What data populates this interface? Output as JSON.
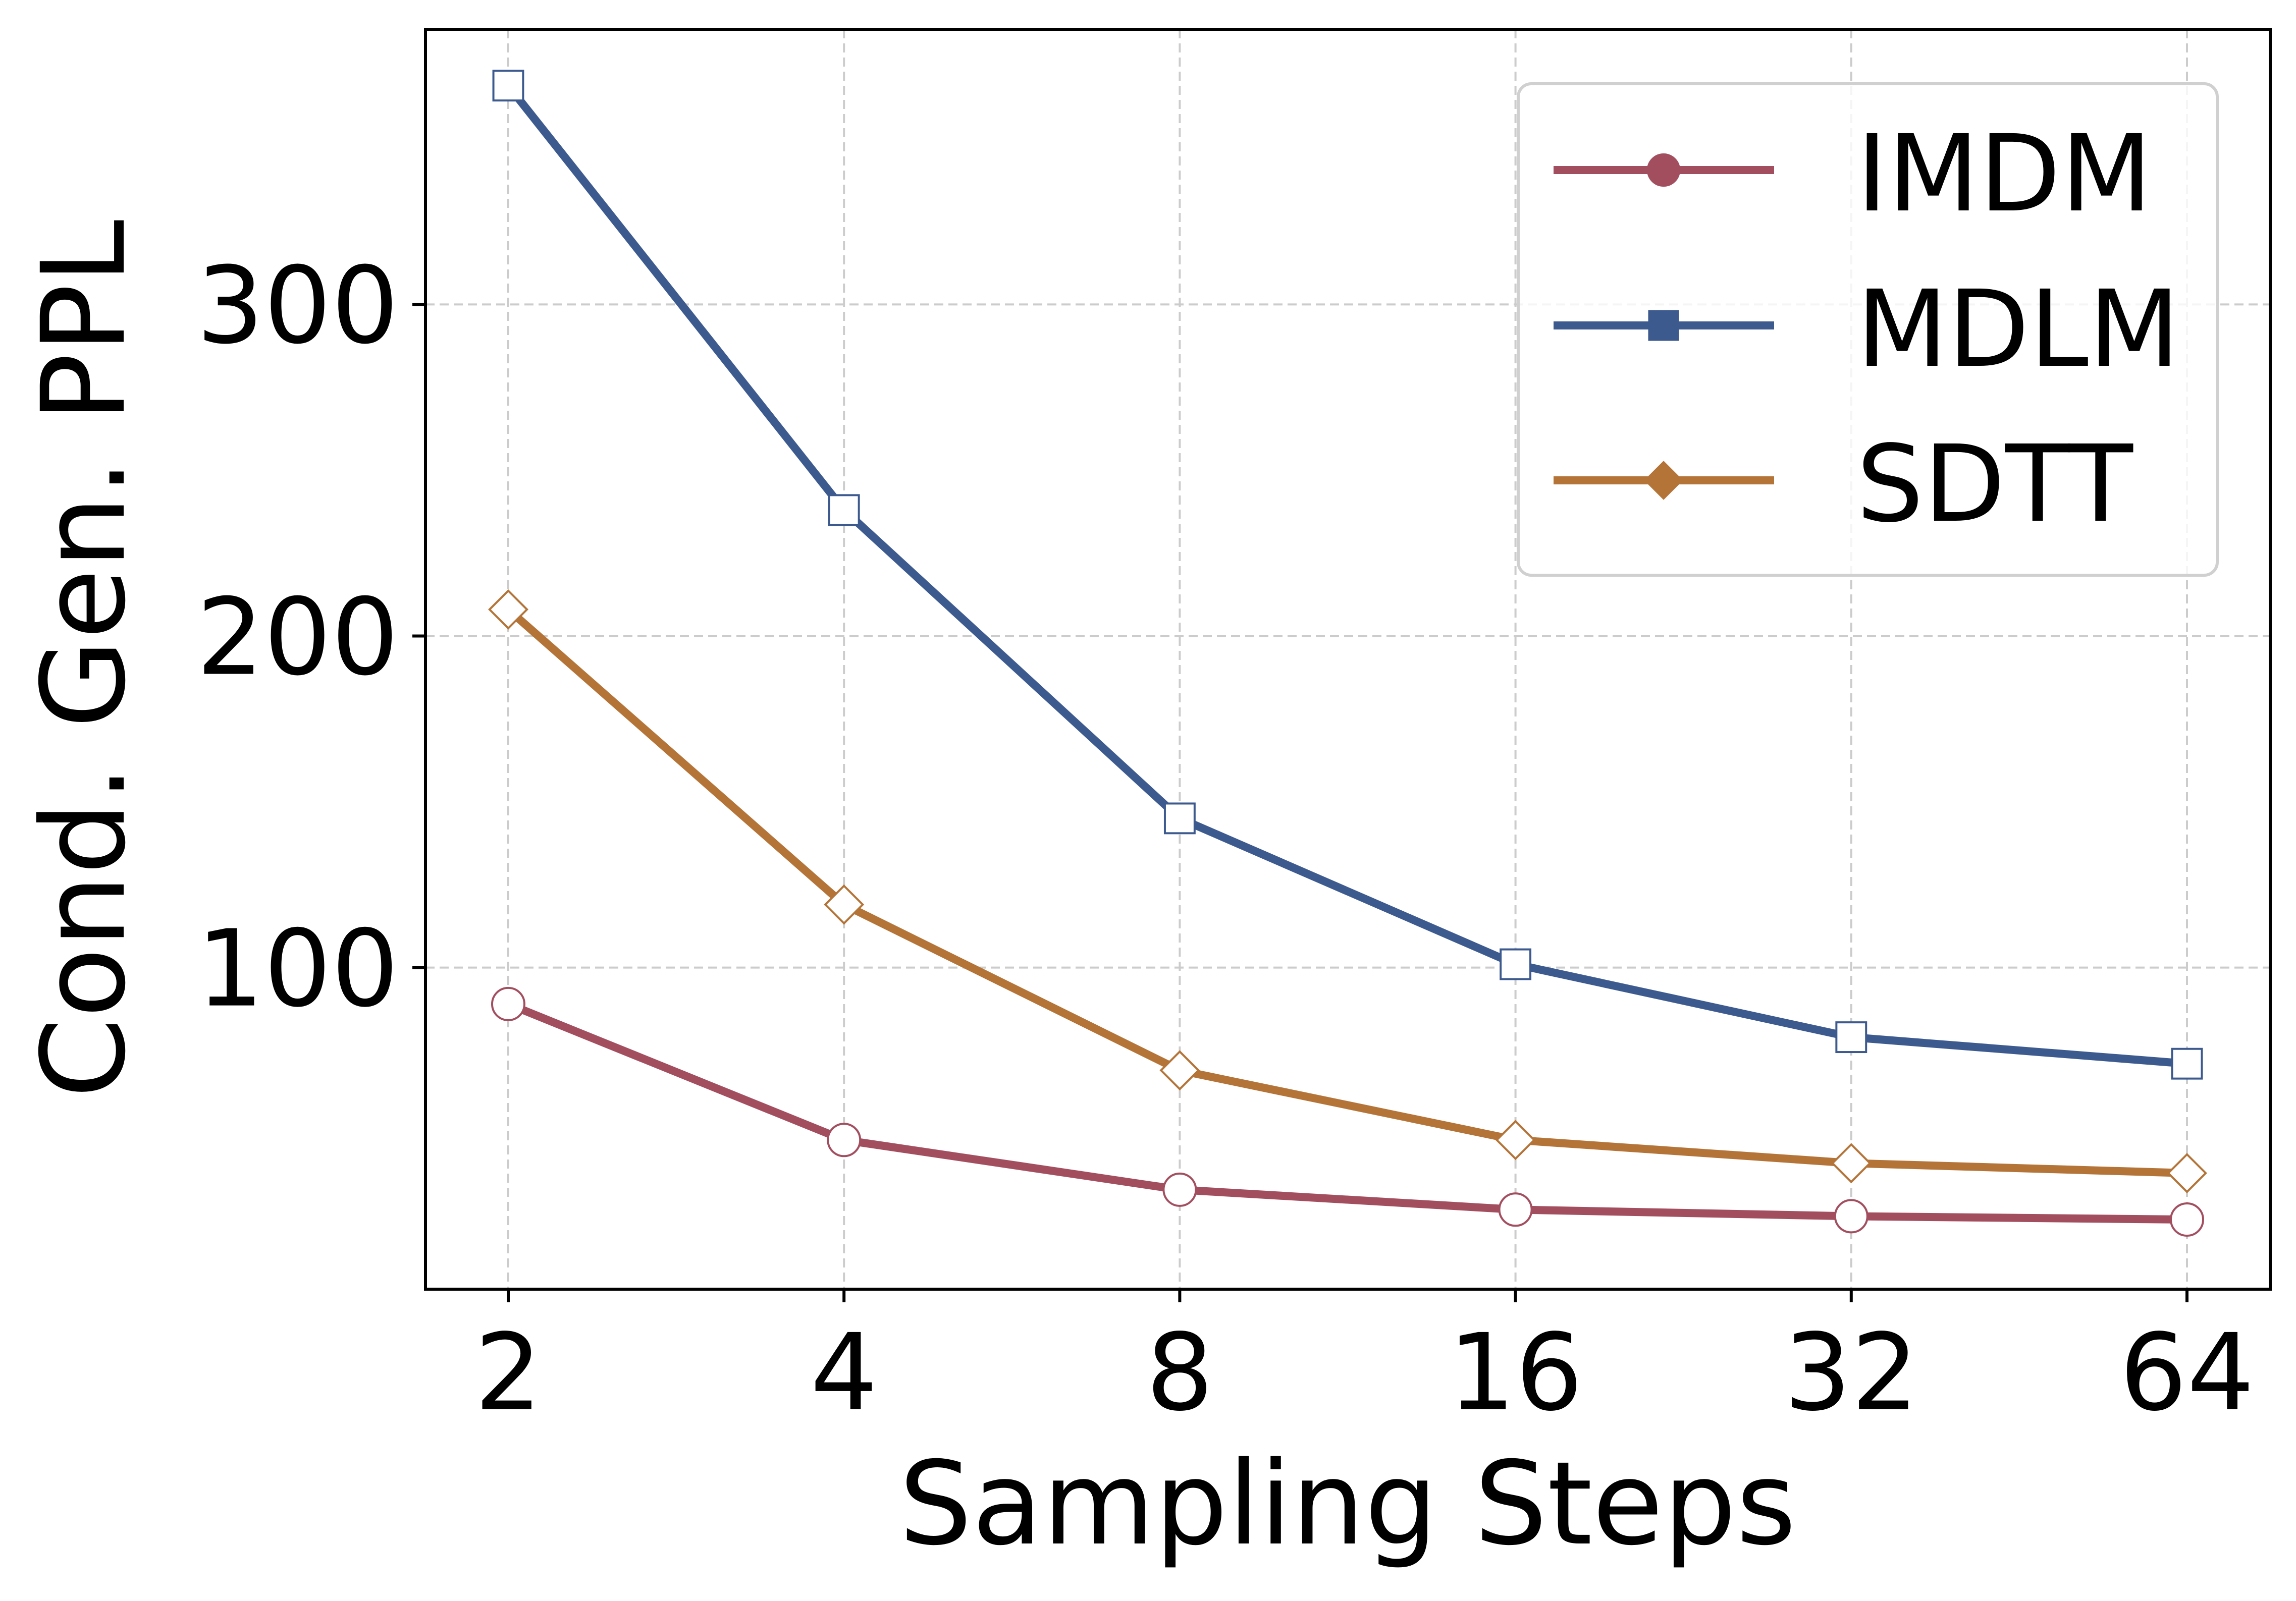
{
  "chart_data": {
    "type": "line",
    "title": "",
    "xlabel": "Sampling Steps",
    "ylabel": "Cond. Gen. PPL",
    "x_ticks": [
      "2",
      "4",
      "8",
      "16",
      "32",
      "64"
    ],
    "x": [
      2,
      4,
      8,
      16,
      32,
      64
    ],
    "x_scale": "log2",
    "y_ticks": [
      100,
      200,
      300
    ],
    "ylim": [
      3,
      383
    ],
    "grid": true,
    "legend_position": "top-right",
    "series": [
      {
        "name": "IMDM",
        "color": "#a24e5f",
        "marker": "circle",
        "values": [
          89,
          48,
          33,
          27,
          25,
          24
        ]
      },
      {
        "name": "MDLM",
        "color": "#3d5a8f",
        "marker": "square",
        "values": [
          366,
          238,
          145,
          101,
          79,
          71
        ]
      },
      {
        "name": "SDTT",
        "color": "#b47438",
        "marker": "diamond",
        "values": [
          208,
          119,
          69,
          48,
          41,
          38
        ]
      }
    ]
  }
}
